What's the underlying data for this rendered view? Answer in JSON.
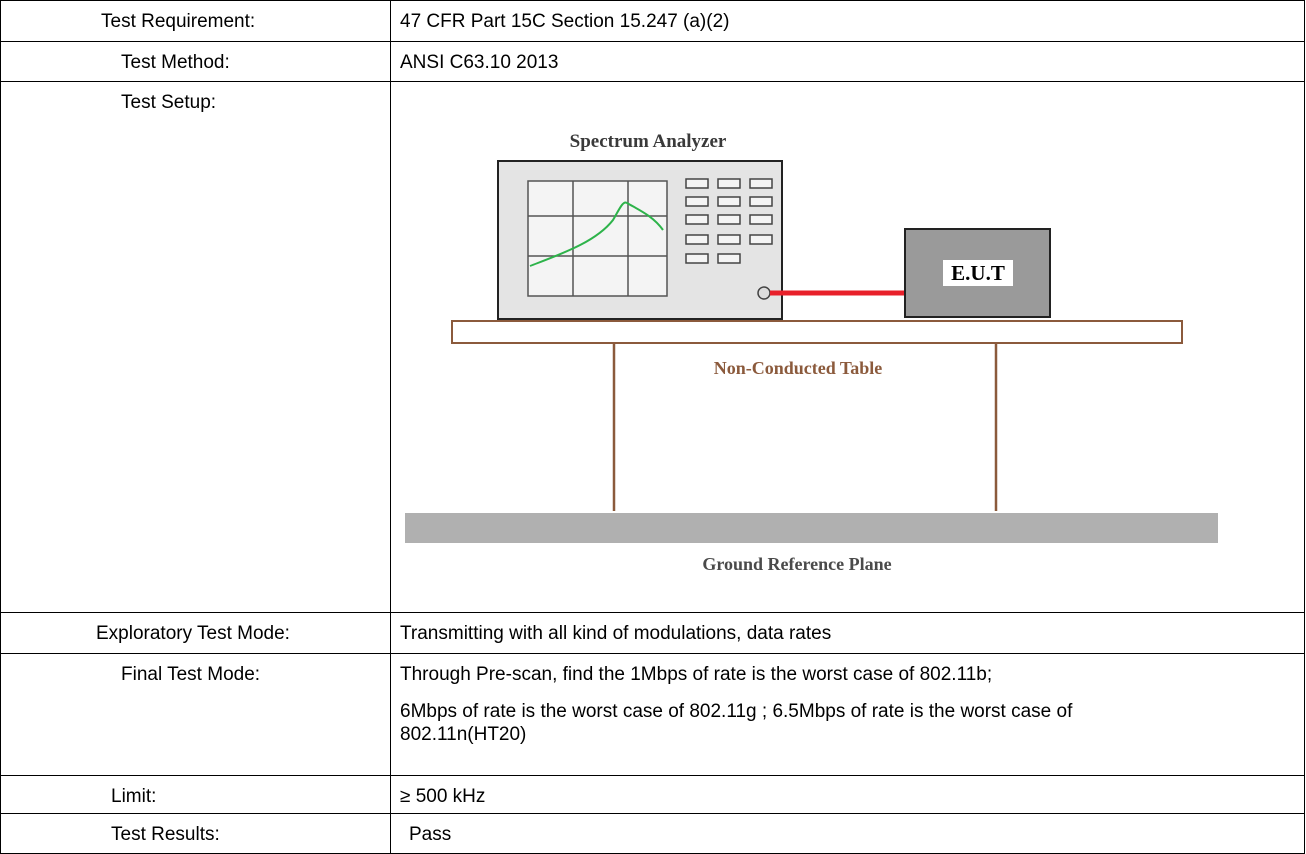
{
  "rows": [
    {
      "label": "Test Requirement:",
      "value": "47 CFR Part 15C Section 15.247 (a)(2)"
    },
    {
      "label": "Test Method:",
      "value": "ANSI C63.10 2013"
    },
    {
      "label": "Test Setup:",
      "diagram": {
        "analyzer": "Spectrum Analyzer",
        "eut": "E.U.T",
        "table": "Non-Conducted Table",
        "ground": "Ground Reference Plane"
      }
    },
    {
      "label": "Exploratory Test Mode:",
      "value": "Transmitting with all kind of modulations, data rates"
    },
    {
      "label": "Final Test Mode:",
      "paragraphs": [
        "Through Pre-scan, find the 1Mbps of rate is the worst case of 802.11b;",
        "6Mbps of rate is the worst case of 802.11g ; 6.5Mbps of rate is the worst case of 802.11n(HT20)"
      ]
    },
    {
      "label": "Limit:",
      "value": "≥ 500 kHz"
    },
    {
      "label": "Test Results:",
      "value": "Pass"
    }
  ]
}
